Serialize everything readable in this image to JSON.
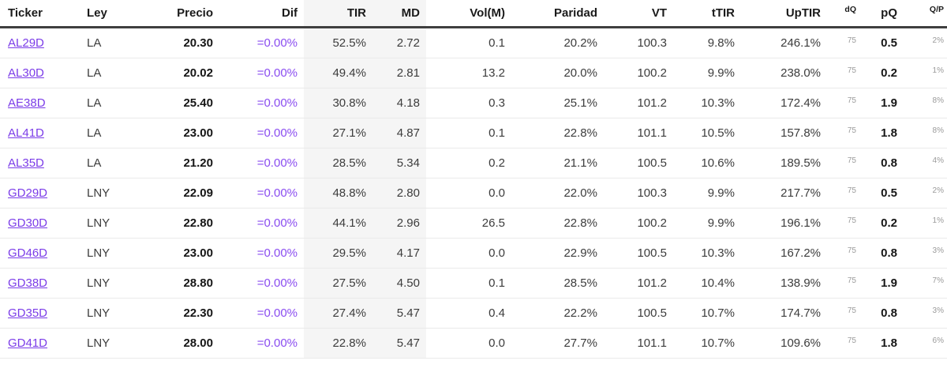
{
  "colors": {
    "ticker_link": "#7b3ce8",
    "dif_text": "#8a4cf0",
    "header_text": "#1a1a1a",
    "body_text": "#3c3c3c",
    "muted_small": "#9a9a9a",
    "band_bg": "#f5f5f5",
    "row_border": "#eaeaea",
    "header_border": "#3f3f3f"
  },
  "columns": [
    {
      "key": "ticker",
      "label": "Ticker"
    },
    {
      "key": "ley",
      "label": "Ley"
    },
    {
      "key": "precio",
      "label": "Precio"
    },
    {
      "key": "dif",
      "label": "Dif"
    },
    {
      "key": "tir",
      "label": "TIR"
    },
    {
      "key": "md",
      "label": "MD"
    },
    {
      "key": "vol",
      "label": "Vol(M)"
    },
    {
      "key": "paridad",
      "label": "Paridad"
    },
    {
      "key": "vt",
      "label": "VT"
    },
    {
      "key": "ttir",
      "label": "tTIR"
    },
    {
      "key": "uptir",
      "label": "UpTIR"
    },
    {
      "key": "dq",
      "label": "dQ"
    },
    {
      "key": "pq",
      "label": "pQ"
    },
    {
      "key": "qp",
      "label": "Q/P"
    }
  ],
  "rows": [
    {
      "ticker": "AL29D",
      "ley": "LA",
      "precio": "20.30",
      "dif": "=0.00%",
      "tir": "52.5%",
      "md": "2.72",
      "vol": "0.1",
      "paridad": "20.2%",
      "vt": "100.3",
      "ttir": "9.8%",
      "uptir": "246.1%",
      "dq": "75",
      "pq": "0.5",
      "qp": "2%"
    },
    {
      "ticker": "AL30D",
      "ley": "LA",
      "precio": "20.02",
      "dif": "=0.00%",
      "tir": "49.4%",
      "md": "2.81",
      "vol": "13.2",
      "paridad": "20.0%",
      "vt": "100.2",
      "ttir": "9.9%",
      "uptir": "238.0%",
      "dq": "75",
      "pq": "0.2",
      "qp": "1%"
    },
    {
      "ticker": "AE38D",
      "ley": "LA",
      "precio": "25.40",
      "dif": "=0.00%",
      "tir": "30.8%",
      "md": "4.18",
      "vol": "0.3",
      "paridad": "25.1%",
      "vt": "101.2",
      "ttir": "10.3%",
      "uptir": "172.4%",
      "dq": "75",
      "pq": "1.9",
      "qp": "8%"
    },
    {
      "ticker": "AL41D",
      "ley": "LA",
      "precio": "23.00",
      "dif": "=0.00%",
      "tir": "27.1%",
      "md": "4.87",
      "vol": "0.1",
      "paridad": "22.8%",
      "vt": "101.1",
      "ttir": "10.5%",
      "uptir": "157.8%",
      "dq": "75",
      "pq": "1.8",
      "qp": "8%"
    },
    {
      "ticker": "AL35D",
      "ley": "LA",
      "precio": "21.20",
      "dif": "=0.00%",
      "tir": "28.5%",
      "md": "5.34",
      "vol": "0.2",
      "paridad": "21.1%",
      "vt": "100.5",
      "ttir": "10.6%",
      "uptir": "189.5%",
      "dq": "75",
      "pq": "0.8",
      "qp": "4%"
    },
    {
      "ticker": "GD29D",
      "ley": "LNY",
      "precio": "22.09",
      "dif": "=0.00%",
      "tir": "48.8%",
      "md": "2.80",
      "vol": "0.0",
      "paridad": "22.0%",
      "vt": "100.3",
      "ttir": "9.9%",
      "uptir": "217.7%",
      "dq": "75",
      "pq": "0.5",
      "qp": "2%"
    },
    {
      "ticker": "GD30D",
      "ley": "LNY",
      "precio": "22.80",
      "dif": "=0.00%",
      "tir": "44.1%",
      "md": "2.96",
      "vol": "26.5",
      "paridad": "22.8%",
      "vt": "100.2",
      "ttir": "9.9%",
      "uptir": "196.1%",
      "dq": "75",
      "pq": "0.2",
      "qp": "1%"
    },
    {
      "ticker": "GD46D",
      "ley": "LNY",
      "precio": "23.00",
      "dif": "=0.00%",
      "tir": "29.5%",
      "md": "4.17",
      "vol": "0.0",
      "paridad": "22.9%",
      "vt": "100.5",
      "ttir": "10.3%",
      "uptir": "167.2%",
      "dq": "75",
      "pq": "0.8",
      "qp": "3%"
    },
    {
      "ticker": "GD38D",
      "ley": "LNY",
      "precio": "28.80",
      "dif": "=0.00%",
      "tir": "27.5%",
      "md": "4.50",
      "vol": "0.1",
      "paridad": "28.5%",
      "vt": "101.2",
      "ttir": "10.4%",
      "uptir": "138.9%",
      "dq": "75",
      "pq": "1.9",
      "qp": "7%"
    },
    {
      "ticker": "GD35D",
      "ley": "LNY",
      "precio": "22.30",
      "dif": "=0.00%",
      "tir": "27.4%",
      "md": "5.47",
      "vol": "0.4",
      "paridad": "22.2%",
      "vt": "100.5",
      "ttir": "10.7%",
      "uptir": "174.7%",
      "dq": "75",
      "pq": "0.8",
      "qp": "3%"
    },
    {
      "ticker": "GD41D",
      "ley": "LNY",
      "precio": "28.00",
      "dif": "=0.00%",
      "tir": "22.8%",
      "md": "5.47",
      "vol": "0.0",
      "paridad": "27.7%",
      "vt": "101.1",
      "ttir": "10.7%",
      "uptir": "109.6%",
      "dq": "75",
      "pq": "1.8",
      "qp": "6%"
    }
  ]
}
